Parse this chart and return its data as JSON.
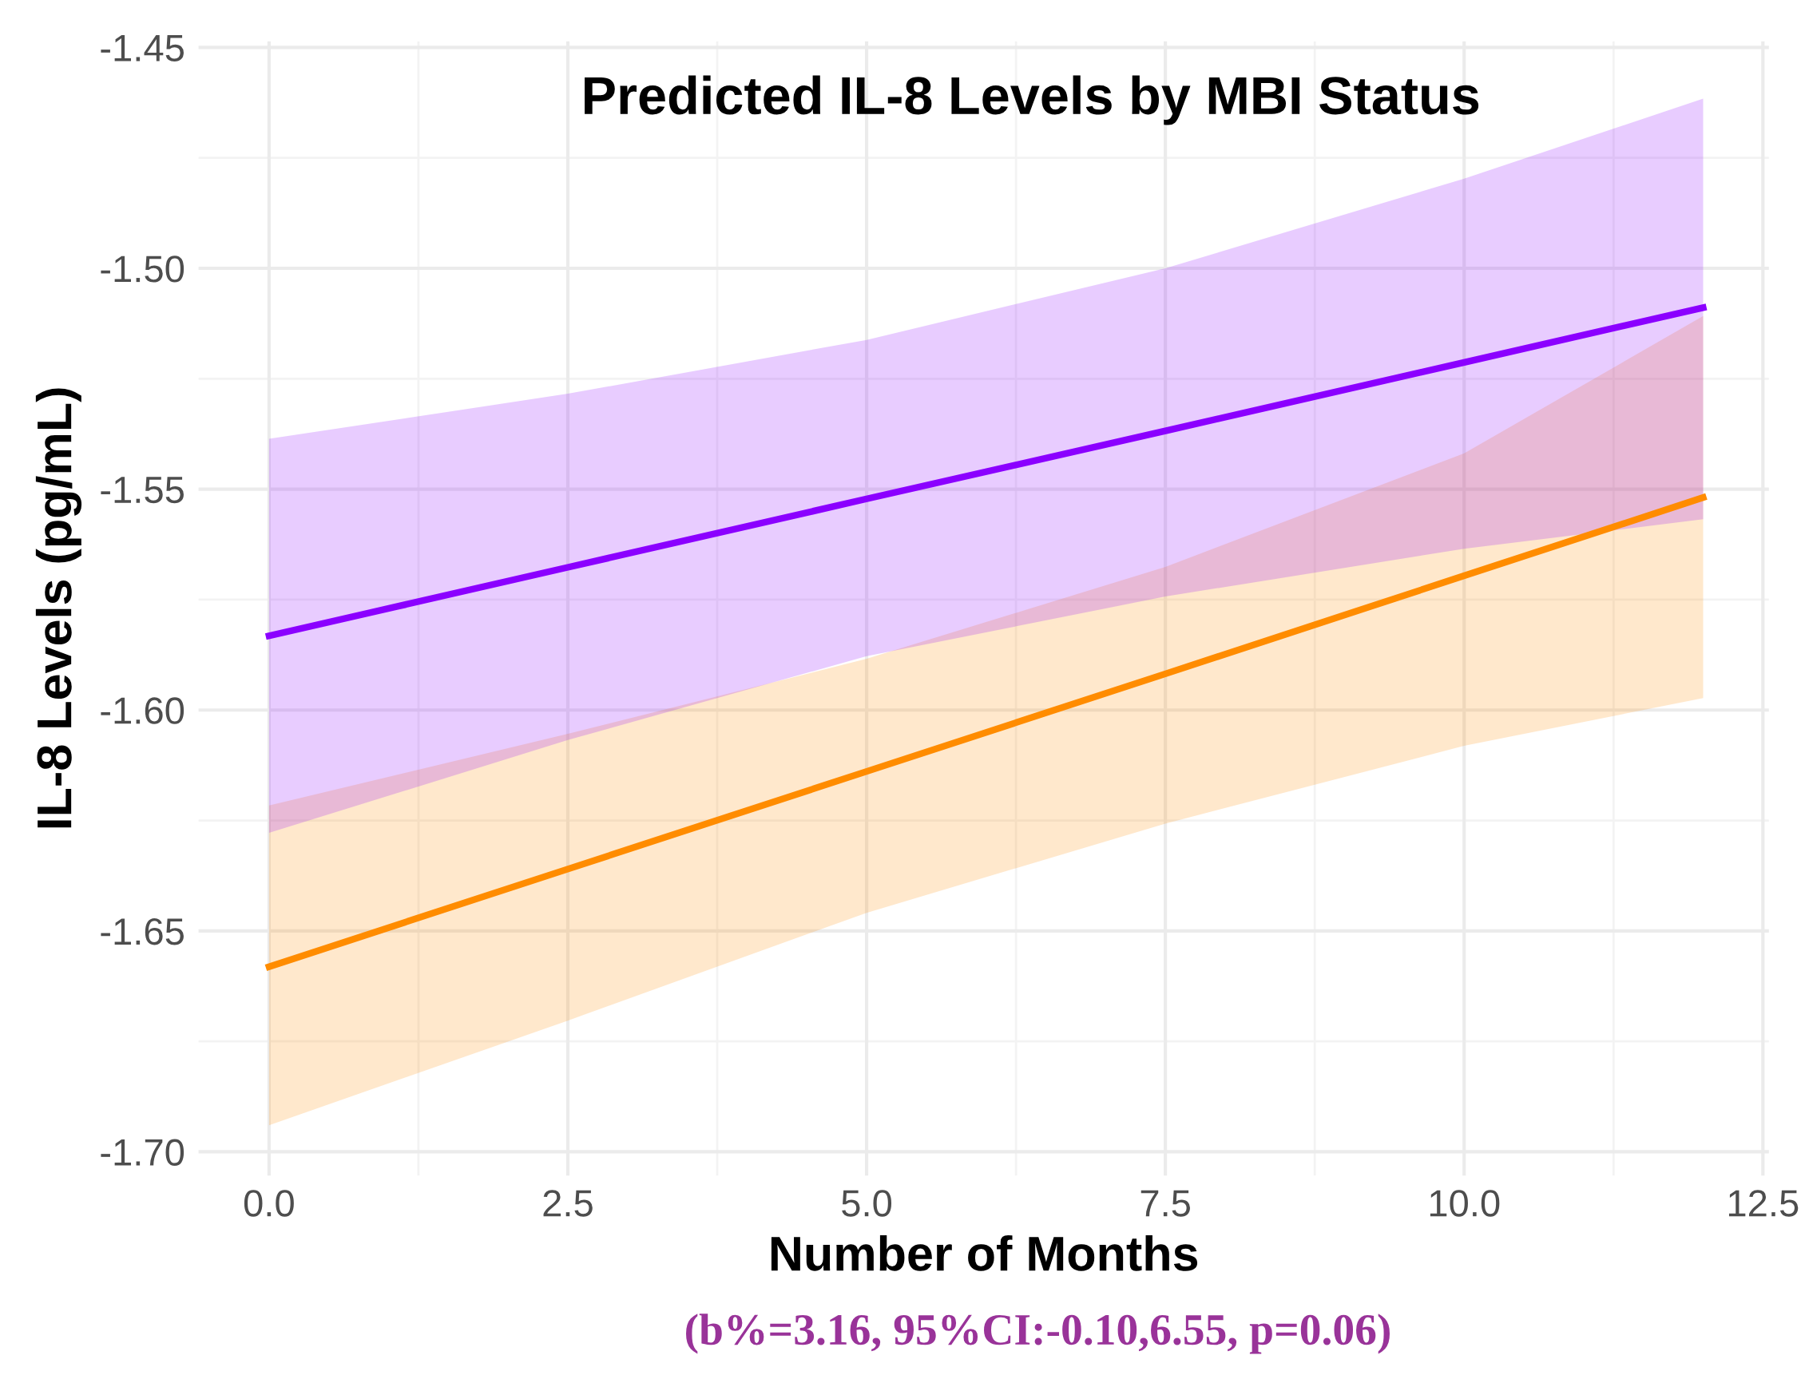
{
  "chart_data": {
    "type": "line",
    "title": "Predicted IL-8 Levels by MBI Status",
    "xlabel": "Number of Months",
    "ylabel": "IL-8 Levels (pg/mL)",
    "annotations": [
      "(b%=3.16, 95%CI:-0.10,6.55, p=0.06)"
    ],
    "x": [
      0,
      2.5,
      5,
      7.5,
      10,
      12
    ],
    "series": [
      {
        "color": "#ff8c00",
        "values": [
          -1.6581,
          -1.636,
          -1.6139,
          -1.5918,
          -1.5696,
          -1.5519
        ],
        "lower": [
          -1.694,
          -1.6703,
          -1.6459,
          -1.6257,
          -1.6081,
          -1.5973
        ],
        "upper": [
          -1.6216,
          -1.6054,
          -1.5884,
          -1.5676,
          -1.5419,
          -1.5108
        ]
      },
      {
        "color": "#8b00ff",
        "values": [
          -1.5832,
          -1.5677,
          -1.5522,
          -1.5368,
          -1.5213,
          -1.5089
        ],
        "lower": [
          -1.6278,
          -1.6068,
          -1.5878,
          -1.5743,
          -1.5635,
          -1.5568
        ],
        "upper": [
          -1.5386,
          -1.5284,
          -1.5162,
          -1.5,
          -1.4797,
          -1.4616
        ]
      }
    ],
    "xlim": [
      -0.59,
      12.55
    ],
    "ylim": [
      -1.7054,
      -1.4486
    ],
    "xticks": [
      {
        "value": 0,
        "label": "0.0"
      },
      {
        "value": 2.5,
        "label": "2.5"
      },
      {
        "value": 5,
        "label": "5.0"
      },
      {
        "value": 7.5,
        "label": "7.5"
      },
      {
        "value": 10,
        "label": "10.0"
      },
      {
        "value": 12.5,
        "label": "12.5"
      }
    ],
    "yticks": [
      {
        "value": -1.7,
        "label": "-1.70"
      },
      {
        "value": -1.65,
        "label": "-1.65"
      },
      {
        "value": -1.6,
        "label": "-1.60"
      },
      {
        "value": -1.55,
        "label": "-1.55"
      },
      {
        "value": -1.5,
        "label": "-1.50"
      },
      {
        "value": -1.45,
        "label": "-1.45"
      }
    ],
    "grid": true,
    "line_style": "solid",
    "marker": "none"
  }
}
